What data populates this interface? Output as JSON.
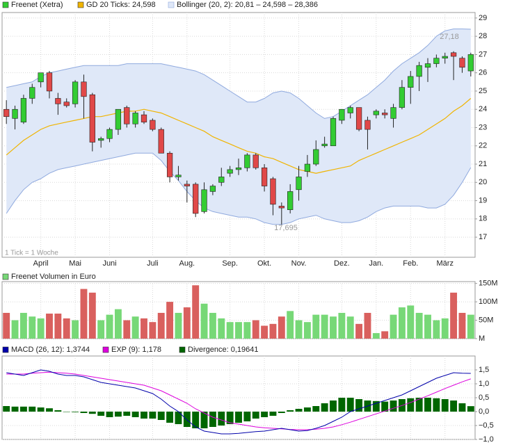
{
  "chart_data": [
    {
      "type": "candlestick",
      "categories": [
        null,
        null,
        null,
        null,
        "April",
        null,
        null,
        null,
        "Mai",
        null,
        null,
        null,
        "Juni",
        null,
        null,
        null,
        null,
        "Juli",
        null,
        null,
        null,
        "Aug.",
        null,
        null,
        null,
        null,
        "Sep.",
        null,
        null,
        null,
        "Okt.",
        null,
        null,
        null,
        "Nov.",
        null,
        null,
        null,
        null,
        "Dez.",
        null,
        null,
        null,
        "Jan.",
        null,
        null,
        null,
        "Feb.",
        null,
        null,
        null,
        "März",
        null,
        null,
        null
      ],
      "series": [
        {
          "name": "Freenet (Xetra)",
          "color": "#33cc33",
          "down_color": "#e04848",
          "open": [
            24.0,
            23.5,
            23.3,
            24.6,
            25.5,
            26.0,
            24.6,
            24.4,
            24.3,
            25.5,
            24.8,
            22.3,
            22.4,
            22.9,
            24.1,
            23.2,
            23.7,
            23.4,
            22.9,
            21.6,
            20.3,
            19.9,
            19.9,
            18.4,
            19.5,
            20.0,
            20.5,
            20.7,
            20.8,
            21.5,
            20.8,
            20.2,
            18.7,
            18.5,
            19.6,
            20.6,
            21.0,
            22.0,
            22.0,
            23.4,
            23.8,
            24.1,
            23.4,
            23.7,
            23.8,
            23.5,
            24.1,
            25.2,
            25.8,
            26.3,
            26.5,
            26.8,
            27.1,
            26.8,
            26.1
          ],
          "high": [
            24.5,
            24.2,
            24.8,
            25.4,
            26.0,
            26.1,
            24.9,
            24.6,
            25.6,
            25.9,
            24.9,
            22.5,
            23.0,
            24.0,
            24.2,
            23.9,
            23.9,
            23.5,
            23.0,
            21.7,
            20.9,
            20.1,
            20.0,
            20.0,
            19.9,
            20.8,
            20.9,
            21.3,
            21.6,
            21.6,
            21.0,
            20.3,
            18.9,
            19.9,
            20.9,
            21.5,
            22.3,
            22.5,
            23.6,
            24.0,
            24.2,
            24.1,
            23.6,
            24.0,
            24.0,
            24.3,
            25.6,
            26.1,
            26.6,
            26.8,
            27.0,
            27.1,
            27.18,
            26.9,
            27.1
          ],
          "low": [
            23.2,
            22.9,
            23.2,
            24.3,
            25.2,
            24.6,
            23.7,
            24.1,
            24.1,
            23.5,
            21.7,
            21.9,
            22.2,
            22.6,
            23.0,
            23.0,
            23.2,
            22.8,
            21.6,
            20.0,
            20.1,
            18.9,
            18.1,
            18.3,
            19.3,
            19.8,
            20.3,
            20.4,
            20.6,
            20.7,
            19.5,
            18.2,
            17.695,
            18.3,
            19.0,
            20.3,
            20.9,
            21.9,
            22.0,
            23.2,
            23.5,
            22.8,
            21.8,
            23.5,
            23.5,
            23.0,
            24.0,
            24.3,
            25.0,
            25.5,
            26.3,
            26.5,
            25.6,
            26.0,
            25.8
          ],
          "close": [
            23.6,
            24.0,
            24.6,
            25.2,
            26.0,
            25.0,
            24.3,
            24.2,
            25.5,
            24.7,
            22.2,
            22.4,
            22.9,
            24.0,
            23.2,
            23.8,
            23.3,
            22.9,
            21.6,
            20.3,
            20.4,
            19.8,
            18.3,
            19.6,
            19.8,
            20.3,
            20.7,
            20.8,
            21.5,
            20.8,
            19.8,
            18.8,
            18.6,
            19.5,
            20.3,
            21.0,
            21.8,
            22.1,
            23.5,
            24.0,
            24.1,
            22.9,
            22.9,
            23.9,
            23.7,
            24.1,
            25.2,
            25.8,
            26.4,
            26.5,
            26.8,
            26.9,
            26.9,
            26.3,
            27.0
          ]
        },
        {
          "name": "GD 20 Ticks: 24,598",
          "color": "#f0b400",
          "values": [
            21.5,
            21.9,
            22.3,
            22.6,
            22.9,
            23.1,
            23.2,
            23.3,
            23.4,
            23.5,
            23.6,
            23.6,
            23.7,
            23.8,
            23.9,
            23.9,
            24.0,
            23.9,
            23.8,
            23.6,
            23.4,
            23.2,
            23.0,
            22.8,
            22.5,
            22.3,
            22.1,
            21.9,
            21.7,
            21.6,
            21.4,
            21.3,
            21.1,
            20.9,
            20.7,
            20.6,
            20.5,
            20.6,
            20.7,
            20.8,
            20.9,
            21.2,
            21.4,
            21.6,
            21.8,
            22.0,
            22.2,
            22.4,
            22.6,
            22.9,
            23.2,
            23.5,
            23.9,
            24.2,
            24.598
          ]
        },
        {
          "name": "Bollinger (20, 2): 20,81 – 24,598 – 28,386",
          "color": "#8fa9de",
          "fill": "#dfe8f8",
          "upper": [
            25.2,
            25.3,
            25.4,
            25.5,
            25.8,
            26.0,
            26.1,
            26.2,
            26.3,
            26.4,
            26.4,
            26.4,
            26.4,
            26.4,
            26.5,
            26.5,
            26.5,
            26.5,
            26.5,
            26.4,
            26.3,
            26.2,
            26.1,
            25.9,
            25.6,
            25.3,
            25.0,
            24.7,
            24.4,
            24.4,
            24.6,
            24.9,
            25.0,
            24.9,
            24.6,
            24.2,
            23.8,
            23.5,
            23.6,
            23.9,
            24.2,
            24.5,
            24.8,
            25.2,
            25.6,
            26.1,
            26.5,
            26.8,
            27.1,
            27.5,
            28.0,
            28.3,
            28.4,
            28.4,
            28.386
          ],
          "lower": [
            18.3,
            19.0,
            19.6,
            20.0,
            20.2,
            20.5,
            20.7,
            20.8,
            20.9,
            21.0,
            21.1,
            21.2,
            21.3,
            21.4,
            21.5,
            21.6,
            21.6,
            21.6,
            21.2,
            20.6,
            20.1,
            19.5,
            19.0,
            18.6,
            18.4,
            18.3,
            18.2,
            18.1,
            18.1,
            18.0,
            17.8,
            17.7,
            17.7,
            17.8,
            18.0,
            18.1,
            18.2,
            18.0,
            17.9,
            17.8,
            17.8,
            17.9,
            18.1,
            18.4,
            18.6,
            18.7,
            18.7,
            18.7,
            18.7,
            18.6,
            18.6,
            18.8,
            19.3,
            20.0,
            20.81
          ]
        }
      ],
      "annotations": [
        "27,18",
        "17,695"
      ],
      "note": "1 Tick = 1 Woche",
      "ylim": [
        15.9,
        29.3
      ],
      "yticks": [
        17,
        18,
        19,
        20,
        21,
        22,
        23,
        24,
        25,
        26,
        27,
        28,
        29
      ],
      "grid": true
    },
    {
      "type": "bar",
      "series": [
        {
          "name": "Freenet Volumen in Euro",
          "color": "#77d877",
          "down_color": "#d9605e",
          "values": [
            70000000,
            50000000,
            70000000,
            60000000,
            55000000,
            68000000,
            68000000,
            55000000,
            50000000,
            135000000,
            125000000,
            50000000,
            65000000,
            80000000,
            50000000,
            60000000,
            55000000,
            45000000,
            70000000,
            100000000,
            70000000,
            85000000,
            145000000,
            95000000,
            70000000,
            55000000,
            45000000,
            45000000,
            45000000,
            50000000,
            35000000,
            40000000,
            60000000,
            75000000,
            50000000,
            45000000,
            65000000,
            65000000,
            60000000,
            70000000,
            60000000,
            40000000,
            70000000,
            15000000,
            20000000,
            65000000,
            85000000,
            90000000,
            70000000,
            65000000,
            50000000,
            55000000,
            125000000,
            70000000,
            65000000
          ]
        }
      ],
      "ylim": [
        0,
        155000000
      ],
      "yticks": [
        {
          "value": 0,
          "label": "M"
        },
        {
          "value": 50000000,
          "label": "50M"
        },
        {
          "value": 100000000,
          "label": "100M"
        },
        {
          "value": 150000000,
          "label": "150M"
        }
      ],
      "grid": true
    },
    {
      "type": "macd",
      "series": [
        {
          "name": "MACD (26, 12): 1,3744",
          "color": "#0000aa",
          "values": [
            1.4,
            1.35,
            1.3,
            1.4,
            1.5,
            1.45,
            1.35,
            1.3,
            1.3,
            1.25,
            1.15,
            1.05,
            1.0,
            0.95,
            0.9,
            0.85,
            0.75,
            0.65,
            0.45,
            0.2,
            0.0,
            -0.3,
            -0.55,
            -0.7,
            -0.75,
            -0.8,
            -0.8,
            -0.78,
            -0.75,
            -0.72,
            -0.7,
            -0.65,
            -0.6,
            -0.65,
            -0.7,
            -0.68,
            -0.6,
            -0.5,
            -0.35,
            -0.2,
            0.0,
            0.1,
            0.2,
            0.3,
            0.4,
            0.5,
            0.6,
            0.75,
            0.9,
            1.05,
            1.2,
            1.3,
            1.4,
            1.38,
            1.3744
          ]
        },
        {
          "name": "EXP (9): 1,178",
          "color": "#dd00dd",
          "values": [
            1.35,
            1.35,
            1.35,
            1.38,
            1.4,
            1.42,
            1.4,
            1.38,
            1.35,
            1.3,
            1.25,
            1.2,
            1.15,
            1.1,
            1.05,
            1.0,
            0.95,
            0.85,
            0.75,
            0.6,
            0.45,
            0.3,
            0.1,
            -0.05,
            -0.2,
            -0.3,
            -0.4,
            -0.45,
            -0.5,
            -0.55,
            -0.58,
            -0.6,
            -0.62,
            -0.64,
            -0.65,
            -0.65,
            -0.63,
            -0.6,
            -0.55,
            -0.47,
            -0.38,
            -0.28,
            -0.18,
            -0.08,
            0.02,
            0.12,
            0.22,
            0.33,
            0.45,
            0.57,
            0.7,
            0.83,
            0.95,
            1.07,
            1.178
          ]
        },
        {
          "name": "Divergence: 0,19641",
          "color": "#006600",
          "values": [
            0.2,
            0.18,
            0.18,
            0.18,
            0.15,
            0.12,
            0.05,
            0.0,
            -0.02,
            -0.05,
            -0.08,
            -0.15,
            -0.2,
            -0.18,
            -0.15,
            -0.2,
            -0.25,
            -0.25,
            -0.3,
            -0.4,
            -0.45,
            -0.55,
            -0.6,
            -0.6,
            -0.55,
            -0.5,
            -0.45,
            -0.4,
            -0.35,
            -0.25,
            -0.2,
            -0.15,
            -0.05,
            0.05,
            0.1,
            0.15,
            0.2,
            0.3,
            0.4,
            0.5,
            0.5,
            0.45,
            0.4,
            0.38,
            0.36,
            0.4,
            0.45,
            0.48,
            0.5,
            0.5,
            0.48,
            0.45,
            0.4,
            0.3,
            0.19641
          ]
        }
      ],
      "ylim": [
        -1.0,
        2.0
      ],
      "yticks": [
        {
          "value": -1.0,
          "label": "−1,0"
        },
        {
          "value": -0.5,
          "label": "−0,5"
        },
        {
          "value": 0,
          "label": "0,0"
        },
        {
          "value": 0.5,
          "label": "0,5"
        },
        {
          "value": 1.0,
          "label": "1,0"
        },
        {
          "value": 1.5,
          "label": "1,5"
        }
      ],
      "grid": true
    }
  ]
}
